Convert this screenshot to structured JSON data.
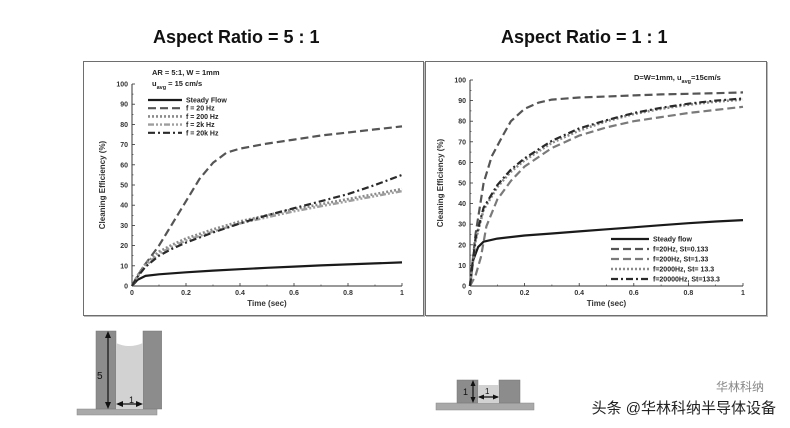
{
  "titles": {
    "left": "Aspect Ratio = 5 : 1",
    "right": "Aspect Ratio = 1 : 1"
  },
  "chart_data": [
    {
      "type": "line",
      "title": "Aspect Ratio = 5 : 1",
      "xlabel": "Time (sec)",
      "ylabel": "Cleaning Efficiency (%)",
      "xlim": [
        0,
        1
      ],
      "ylim": [
        0,
        100
      ],
      "xticks": [
        "0",
        "0.2",
        "0.4",
        "0.6",
        "0.8",
        "1"
      ],
      "yticks": [
        "0",
        "10",
        "20",
        "30",
        "40",
        "50",
        "60",
        "70",
        "80",
        "90",
        "100"
      ],
      "annotations": [
        "AR = 5:1, W = 1mm",
        "u_avg = 15 cm/s"
      ],
      "legend_position": "top-left",
      "series": [
        {
          "name": "Steady Flow",
          "style": "solid",
          "color": "#1a1a1a",
          "x": [
            0,
            0.02,
            0.05,
            0.1,
            0.2,
            0.3,
            0.4,
            0.5,
            0.6,
            0.7,
            0.8,
            0.9,
            1.0
          ],
          "y": [
            0,
            3,
            5,
            5.8,
            6.8,
            7.6,
            8.3,
            9.0,
            9.6,
            10.2,
            10.7,
            11.2,
            11.7
          ]
        },
        {
          "name": "f =   20 Hz",
          "style": "dashed",
          "color": "#555555",
          "x": [
            0,
            0.02,
            0.05,
            0.1,
            0.15,
            0.2,
            0.25,
            0.3,
            0.35,
            0.4,
            0.5,
            0.6,
            0.7,
            0.8,
            0.9,
            1.0
          ],
          "y": [
            0,
            5,
            11,
            20,
            31,
            42,
            53,
            61,
            66,
            68,
            70.5,
            72.5,
            74.5,
            76,
            77.5,
            79
          ]
        },
        {
          "name": "f = 200 Hz",
          "style": "dotted",
          "color": "#8a8a8a",
          "x": [
            0,
            0.02,
            0.05,
            0.1,
            0.15,
            0.2,
            0.3,
            0.4,
            0.5,
            0.6,
            0.7,
            0.8,
            0.9,
            1.0
          ],
          "y": [
            0,
            5,
            11,
            17,
            20.5,
            23.5,
            28,
            32,
            35,
            38,
            40.5,
            43,
            45.5,
            48
          ]
        },
        {
          "name": "f =   2k Hz",
          "style": "dash-dot-dot",
          "color": "#9e9e9e",
          "x": [
            0,
            0.02,
            0.05,
            0.1,
            0.15,
            0.2,
            0.3,
            0.4,
            0.5,
            0.6,
            0.7,
            0.8,
            0.9,
            1.0
          ],
          "y": [
            0,
            4.5,
            10,
            16,
            19.5,
            22.5,
            27,
            31,
            34,
            37,
            39.5,
            42,
            44.5,
            47
          ]
        },
        {
          "name": "f = 20k Hz",
          "style": "dash-dot",
          "color": "#2a2a2a",
          "x": [
            0,
            0.02,
            0.05,
            0.1,
            0.15,
            0.2,
            0.3,
            0.4,
            0.5,
            0.6,
            0.7,
            0.8,
            0.9,
            1.0
          ],
          "y": [
            0,
            4.5,
            9.5,
            15,
            18.5,
            21.5,
            26.5,
            31,
            35,
            38.5,
            42,
            45.5,
            50,
            55
          ]
        }
      ]
    },
    {
      "type": "line",
      "title": "Aspect Ratio = 1 : 1",
      "xlabel": "Time (sec)",
      "ylabel": "Cleaning Efficiency (%)",
      "xlim": [
        0,
        1
      ],
      "ylim": [
        0,
        100
      ],
      "xticks": [
        "0",
        "0.2",
        "0.4",
        "0.6",
        "0.8",
        "1"
      ],
      "yticks": [
        "0",
        "10",
        "20",
        "30",
        "40",
        "50",
        "60",
        "70",
        "80",
        "90",
        "100"
      ],
      "annotations": [
        "D=W=1mm, u_avg=15cm/s"
      ],
      "legend_position": "bottom-right",
      "series": [
        {
          "name": "Steady flow",
          "style": "solid",
          "color": "#1a1a1a",
          "x": [
            0,
            0.01,
            0.03,
            0.05,
            0.1,
            0.2,
            0.3,
            0.4,
            0.5,
            0.6,
            0.7,
            0.8,
            0.9,
            1.0
          ],
          "y": [
            0,
            12,
            19,
            21.5,
            23,
            24.5,
            25.5,
            26.5,
            27.5,
            28.5,
            29.5,
            30.5,
            31.3,
            32
          ]
        },
        {
          "name": "f=20Hz, St=0.133",
          "style": "dashed",
          "color": "#555555",
          "x": [
            0,
            0.02,
            0.05,
            0.08,
            0.12,
            0.15,
            0.2,
            0.25,
            0.3,
            0.4,
            0.5,
            0.6,
            0.7,
            0.8,
            0.9,
            1.0
          ],
          "y": [
            0,
            25,
            50,
            63,
            73,
            80,
            86,
            89,
            90.5,
            91.5,
            92,
            92.5,
            93,
            93.3,
            93.6,
            94
          ]
        },
        {
          "name": "f=200Hz, St=1.33",
          "style": "dashed",
          "color": "#7a7a7a",
          "x": [
            0,
            0.02,
            0.04,
            0.06,
            0.1,
            0.15,
            0.2,
            0.3,
            0.4,
            0.5,
            0.6,
            0.7,
            0.8,
            0.9,
            1.0
          ],
          "y": [
            0,
            5,
            14,
            29,
            42,
            51,
            58,
            67,
            73,
            77,
            80,
            82,
            84,
            85.5,
            87
          ]
        },
        {
          "name": "f=2000Hz, St= 13.3",
          "style": "dotted",
          "color": "#8a8a8a",
          "x": [
            0,
            0.02,
            0.05,
            0.1,
            0.15,
            0.2,
            0.3,
            0.4,
            0.5,
            0.6,
            0.7,
            0.8,
            0.9,
            1.0
          ],
          "y": [
            0,
            22,
            37,
            48,
            55.5,
            61,
            69.5,
            75.5,
            80,
            83.5,
            86,
            88,
            89.5,
            90.5
          ]
        },
        {
          "name": "f=20000Hz, St=133.3",
          "style": "dash-dot",
          "color": "#2a2a2a",
          "x": [
            0,
            0.02,
            0.05,
            0.1,
            0.15,
            0.2,
            0.3,
            0.4,
            0.5,
            0.6,
            0.7,
            0.8,
            0.9,
            1.0
          ],
          "y": [
            0,
            23,
            38,
            49,
            56.5,
            62,
            70.5,
            76.5,
            80.5,
            84,
            86.5,
            88.5,
            90,
            91
          ]
        }
      ]
    }
  ],
  "diagrams": {
    "left": {
      "depth_label": "5",
      "width_label": "1"
    },
    "right": {
      "depth_label": "1",
      "width_label": "1"
    }
  },
  "watermark": {
    "text": "头条 @华林科纳半导体设备",
    "small_text": "华林科纳"
  }
}
